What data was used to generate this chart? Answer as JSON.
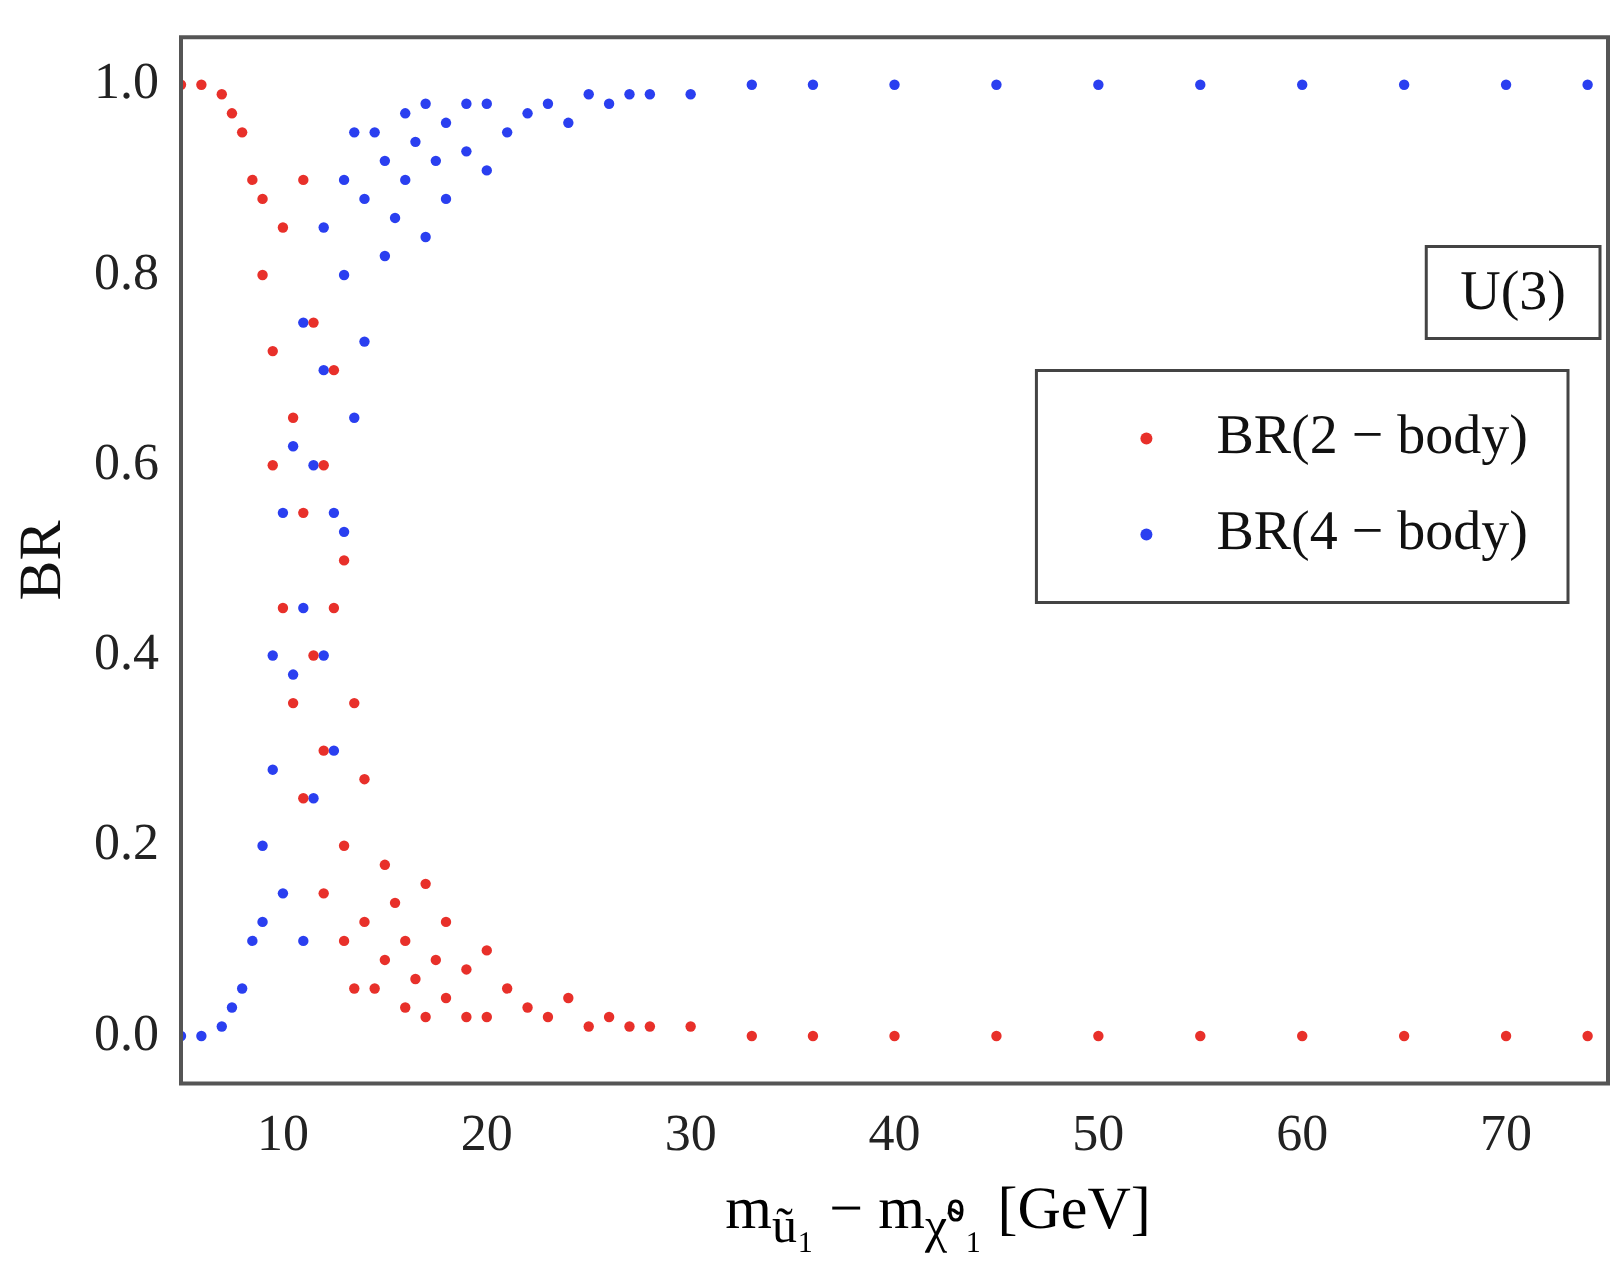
{
  "chart_data": {
    "type": "scatter",
    "xlabel": "m$_{ũ₁}$ − m$_{χ̃⁰₁}$ [GeV]",
    "ylabel": "BR",
    "annotations": [
      "U(3)"
    ],
    "x": [
      5,
      6,
      7,
      7.5,
      8,
      8.5,
      9,
      9,
      9.5,
      9.5,
      10,
      10,
      10.5,
      10.5,
      11,
      11,
      11,
      11.5,
      11.5,
      12,
      12,
      12,
      12.5,
      12.5,
      13,
      13,
      13,
      13.5,
      13.5,
      14,
      14,
      14.5,
      15,
      15,
      15.5,
      16,
      16,
      16.5,
      17,
      17,
      17.5,
      18,
      18,
      19,
      19,
      20,
      20,
      21,
      22,
      23,
      24,
      25,
      26,
      27,
      28,
      30,
      33,
      36,
      40,
      45,
      50,
      55,
      60,
      65,
      70,
      74
    ],
    "series": [
      {
        "name": "BR(2 − body)",
        "color": "#e8302a",
        "values": [
          1,
          1,
          0.99,
          0.97,
          0.95,
          0.9,
          0.88,
          0.8,
          0.72,
          0.6,
          0.85,
          0.45,
          0.65,
          0.35,
          0.9,
          0.55,
          0.25,
          0.75,
          0.4,
          0.6,
          0.3,
          0.15,
          0.7,
          0.45,
          0.5,
          0.2,
          0.1,
          0.35,
          0.05,
          0.27,
          0.12,
          0.05,
          0.18,
          0.08,
          0.14,
          0.03,
          0.1,
          0.06,
          0.16,
          0.02,
          0.08,
          0.12,
          0.04,
          0.07,
          0.02,
          0.09,
          0.02,
          0.05,
          0.03,
          0.02,
          0.04,
          0.01,
          0.02,
          0.01,
          0.01,
          0.01,
          0,
          0,
          0,
          0,
          0,
          0,
          0,
          0,
          0,
          0
        ]
      },
      {
        "name": "BR(4 − body)",
        "color": "#2a3ff0",
        "values": [
          0,
          0,
          0.01,
          0.03,
          0.05,
          0.1,
          0.12,
          0.2,
          0.28,
          0.4,
          0.15,
          0.55,
          0.38,
          0.62,
          0.1,
          0.45,
          0.75,
          0.25,
          0.6,
          0.4,
          0.7,
          0.85,
          0.3,
          0.55,
          0.53,
          0.8,
          0.9,
          0.65,
          0.95,
          0.73,
          0.88,
          0.95,
          0.82,
          0.92,
          0.86,
          0.97,
          0.9,
          0.94,
          0.84,
          0.98,
          0.92,
          0.88,
          0.96,
          0.93,
          0.98,
          0.91,
          0.98,
          0.95,
          0.97,
          0.98,
          0.96,
          0.99,
          0.98,
          0.99,
          0.99,
          0.99,
          1,
          1,
          1,
          1,
          1,
          1,
          1,
          1,
          1,
          1
        ]
      }
    ],
    "xlim": [
      5,
      75
    ],
    "xticks": [
      10,
      20,
      30,
      40,
      50,
      60,
      70
    ],
    "ylim": [
      -0.05,
      1.05
    ],
    "yticks": [
      {
        "value": 0,
        "label": "0.0"
      },
      {
        "value": 0.2,
        "label": "0.2"
      },
      {
        "value": 0.4,
        "label": "0.4"
      },
      {
        "value": 0.6,
        "label": "0.6"
      },
      {
        "value": 0.8,
        "label": "0.8"
      },
      {
        "value": 1,
        "label": "1.0"
      }
    ],
    "grid": false,
    "legend": "right",
    "marker": "circle"
  }
}
